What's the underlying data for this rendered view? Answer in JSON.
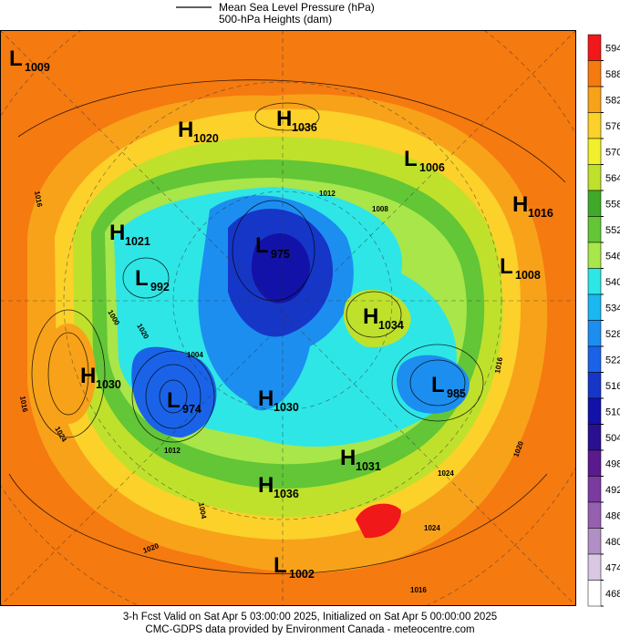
{
  "legend": {
    "lines": [
      "Mean Sea Level Pressure (hPa)",
      "500-hPa Heights (dam)"
    ]
  },
  "centers": [
    {
      "letter": "L",
      "value": "1009"
    },
    {
      "letter": "H",
      "value": "1020"
    },
    {
      "letter": "H",
      "value": "1036"
    },
    {
      "letter": "L",
      "value": "1006"
    },
    {
      "letter": "H",
      "value": "1016"
    },
    {
      "letter": "H",
      "value": "1021"
    },
    {
      "letter": "L",
      "value": "975"
    },
    {
      "letter": "L",
      "value": "992"
    },
    {
      "letter": "L",
      "value": "1008"
    },
    {
      "letter": "H",
      "value": "1034"
    },
    {
      "letter": "H",
      "value": "1030"
    },
    {
      "letter": "L",
      "value": "974"
    },
    {
      "letter": "H",
      "value": "1030"
    },
    {
      "letter": "L",
      "value": "985"
    },
    {
      "letter": "H",
      "value": "1031"
    },
    {
      "letter": "H",
      "value": "1036"
    },
    {
      "letter": "L",
      "value": "1002"
    }
  ],
  "contour_labels": [
    "1016",
    "1012",
    "1008",
    "1016",
    "1024",
    "1012",
    "1024",
    "1020",
    "1016",
    "1024",
    "1020",
    "1016",
    "1004",
    "1000",
    "1020",
    "1004"
  ],
  "colorbar": {
    "values": [
      594,
      588,
      582,
      576,
      570,
      564,
      558,
      552,
      546,
      540,
      534,
      528,
      522,
      516,
      510,
      504,
      498,
      492,
      486,
      480,
      474,
      468
    ],
    "colors": [
      "#f01818",
      "#f57a10",
      "#f8a21a",
      "#fbd12a",
      "#f2ef2c",
      "#bfe12c",
      "#3faa2a",
      "#62c636",
      "#a8e64a",
      "#2ee6e6",
      "#1ab7f0",
      "#1c8ef0",
      "#1a63e8",
      "#1636c8",
      "#1212a8",
      "#2a1090",
      "#5a1a8e",
      "#7a3aa0",
      "#9560b0",
      "#b090c4",
      "#d8c8e4",
      "#ffffff"
    ]
  },
  "footer": [
    "3-h Fcst Valid on Sat Apr  5 03:00:00 2025, Initialized on Sat Apr  5 00:00:00 2025",
    "CMC-GDPS data provided by Environment Canada - meteocentre.com"
  ]
}
